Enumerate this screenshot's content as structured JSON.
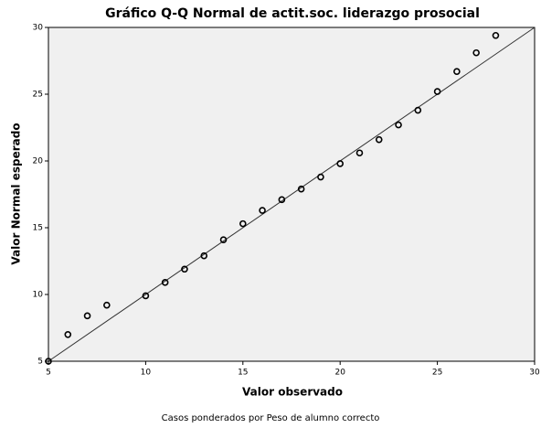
{
  "chart_data": {
    "type": "scatter",
    "title": "Gráfico Q-Q Normal de actit.soc. liderazgo prosocial",
    "x_label": "Valor observado",
    "y_label": "Valor Normal esperado",
    "footnote": "Casos ponderados por Peso de alumno correcto",
    "x": [
      5,
      6,
      7,
      8,
      10,
      11,
      12,
      13,
      14,
      15,
      16,
      17,
      18,
      19,
      20,
      21,
      22,
      23,
      24,
      25,
      26,
      27,
      28
    ],
    "values": [
      5.0,
      7.0,
      8.4,
      9.2,
      9.9,
      10.9,
      11.9,
      12.9,
      14.1,
      15.3,
      16.3,
      17.1,
      17.9,
      18.8,
      19.8,
      20.6,
      21.6,
      22.7,
      23.8,
      25.2,
      26.7,
      28.1,
      29.4
    ],
    "xlim": [
      5,
      30
    ],
    "ylim": [
      5,
      30
    ],
    "xticks": [
      5,
      10,
      15,
      20,
      25,
      30
    ],
    "yticks": [
      5,
      10,
      15,
      20,
      25,
      30
    ],
    "color": "#000000"
  }
}
